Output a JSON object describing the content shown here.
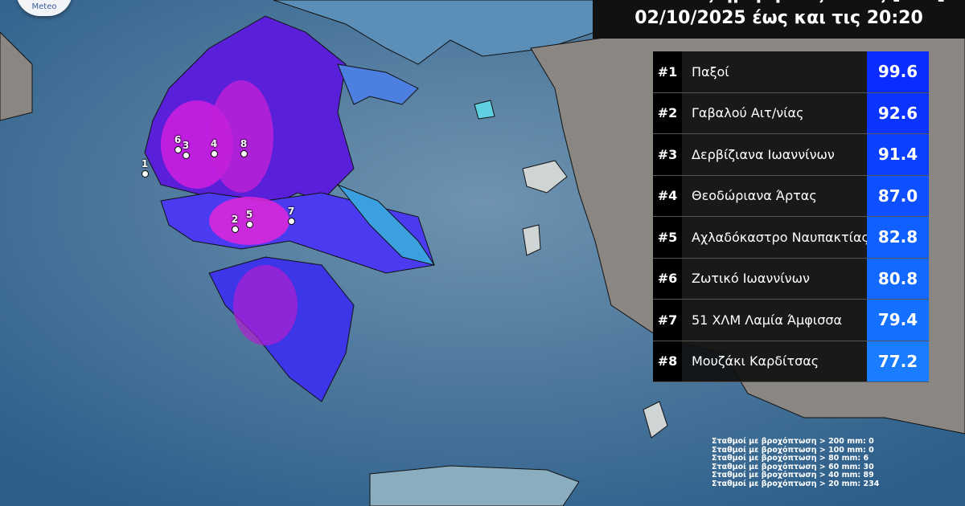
{
  "logo": {
    "text": "Meteo"
  },
  "title": {
    "line1": "Συνολικός ημερήσιος υετός [mm]",
    "line2": "02/10/2025 έως και τις 20:20"
  },
  "ranking": [
    {
      "rank": "#1",
      "station": "Παξοί",
      "value": "99.6",
      "color": "#0a2cff"
    },
    {
      "rank": "#2",
      "station": "Γαβαλού Αιτ/νίας",
      "value": "92.6",
      "color": "#0b35ff"
    },
    {
      "rank": "#3",
      "station": "Δερβίζιανα Ιωαννίνων",
      "value": "91.4",
      "color": "#0c40ff"
    },
    {
      "rank": "#4",
      "station": "Θεοδώριανα Άρτας",
      "value": "87.0",
      "color": "#0e50ff"
    },
    {
      "rank": "#5",
      "station": "Αχλαδόκαστρο Ναυπακτίας",
      "value": "82.8",
      "color": "#1060ff"
    },
    {
      "rank": "#6",
      "station": "Ζωτικό Ιωαννίνων",
      "value": "80.8",
      "color": "#1268ff"
    },
    {
      "rank": "#7",
      "station": "51 ΧΛΜ Λαμία Άμφισσα",
      "value": "79.4",
      "color": "#1470ff"
    },
    {
      "rank": "#8",
      "station": "Μουζάκι Καρδίτσας",
      "value": "77.2",
      "color": "#1a7cff"
    }
  ],
  "markers": [
    "1",
    "2",
    "3",
    "4",
    "5",
    "6",
    "7",
    "8"
  ],
  "stats": [
    "Σταθμοί με βροχόπτωση > 200 mm: 0",
    "Σταθμοί με βροχόπτωση > 100 mm: 0",
    "Σταθμοί με βροχόπτωση > 80 mm: 6",
    "Σταθμοί με βροχόπτωση > 60 mm: 30",
    "Σταθμοί με βροχόπτωση > 40 mm: 89",
    "Σταθμοί με βροχόπτωση > 20 mm: 234"
  ]
}
